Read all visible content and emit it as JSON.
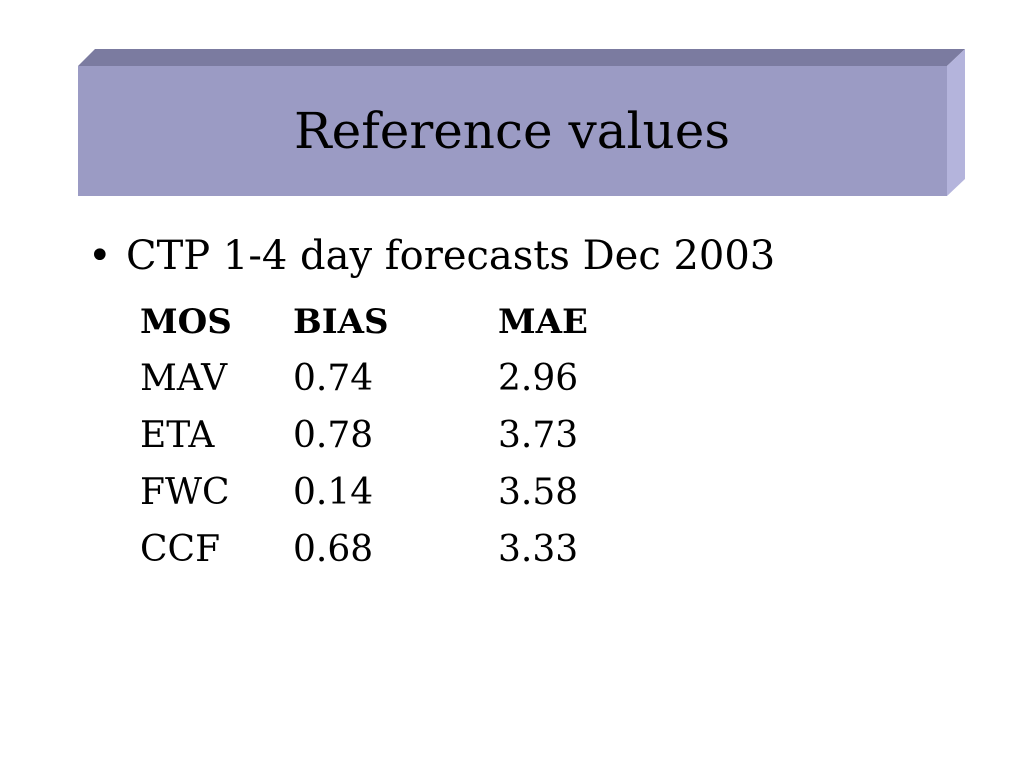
{
  "slide": {
    "title": "Reference values",
    "bullet": "CTP 1-4 day forecasts Dec 2003",
    "table": {
      "headers": [
        "MOS",
        "BIAS",
        "MAE"
      ],
      "rows": [
        [
          "MAV",
          "0.74",
          "2.96"
        ],
        [
          "ETA",
          "0.78",
          "3.73"
        ],
        [
          "FWC",
          "0.14",
          "3.58"
        ],
        [
          "CCF",
          "0.68",
          "3.33"
        ]
      ]
    }
  },
  "colors": {
    "title_face": "#9b9bc4",
    "title_top": "#7b7ba0",
    "title_side": "#b4b4dc"
  }
}
